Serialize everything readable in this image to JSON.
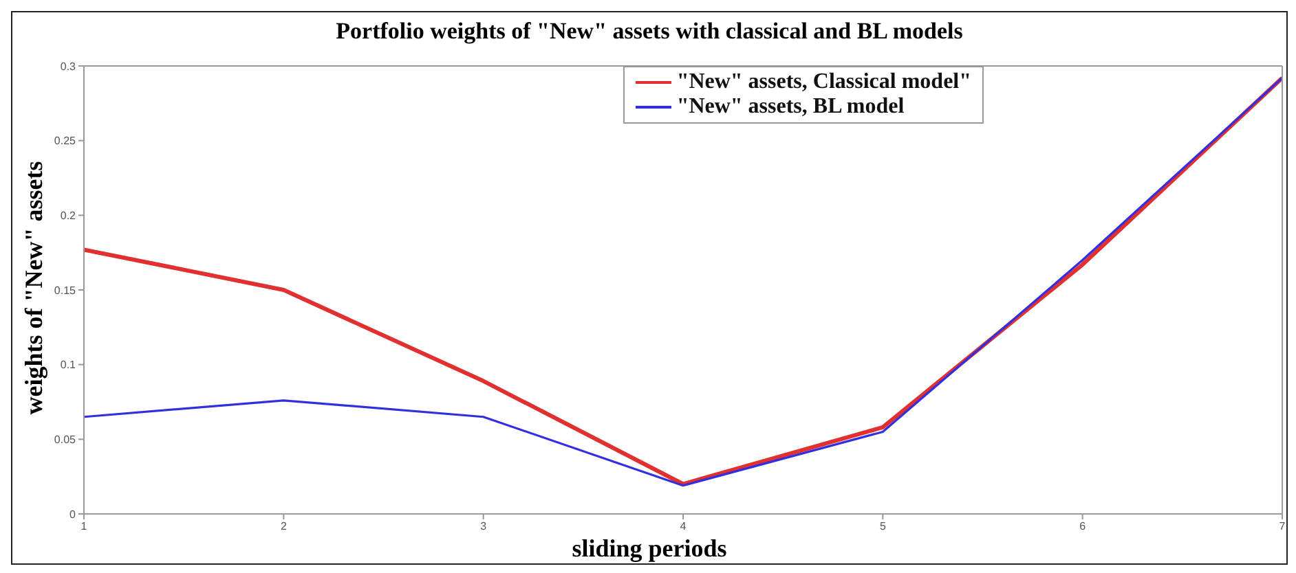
{
  "chart_data": {
    "type": "line",
    "title": "Portfolio weights of \"New\" assets with classical and BL models",
    "xlabel": "sliding periods",
    "ylabel": "weights of \"New\" assets",
    "x": [
      1,
      2,
      3,
      4,
      5,
      6,
      7
    ],
    "xlim": [
      1,
      7
    ],
    "xticks": [
      1,
      2,
      3,
      4,
      5,
      6,
      7
    ],
    "ylim": [
      0,
      0.3
    ],
    "yticks": [
      0,
      0.05,
      0.1,
      0.15,
      0.2,
      0.25,
      0.3
    ],
    "series": [
      {
        "name": "\"New\" assets, Classical model\"",
        "color": "#e03030",
        "values": [
          0.177,
          0.15,
          0.089,
          0.02,
          0.058,
          0.167,
          0.292
        ]
      },
      {
        "name": "\"New\" assets, BL model",
        "color": "#3030e0",
        "values": [
          0.065,
          0.076,
          0.065,
          0.019,
          0.055,
          0.17,
          0.292
        ]
      }
    ],
    "grid": false,
    "legend": "top right",
    "marker": "none",
    "line_style": "solid"
  }
}
